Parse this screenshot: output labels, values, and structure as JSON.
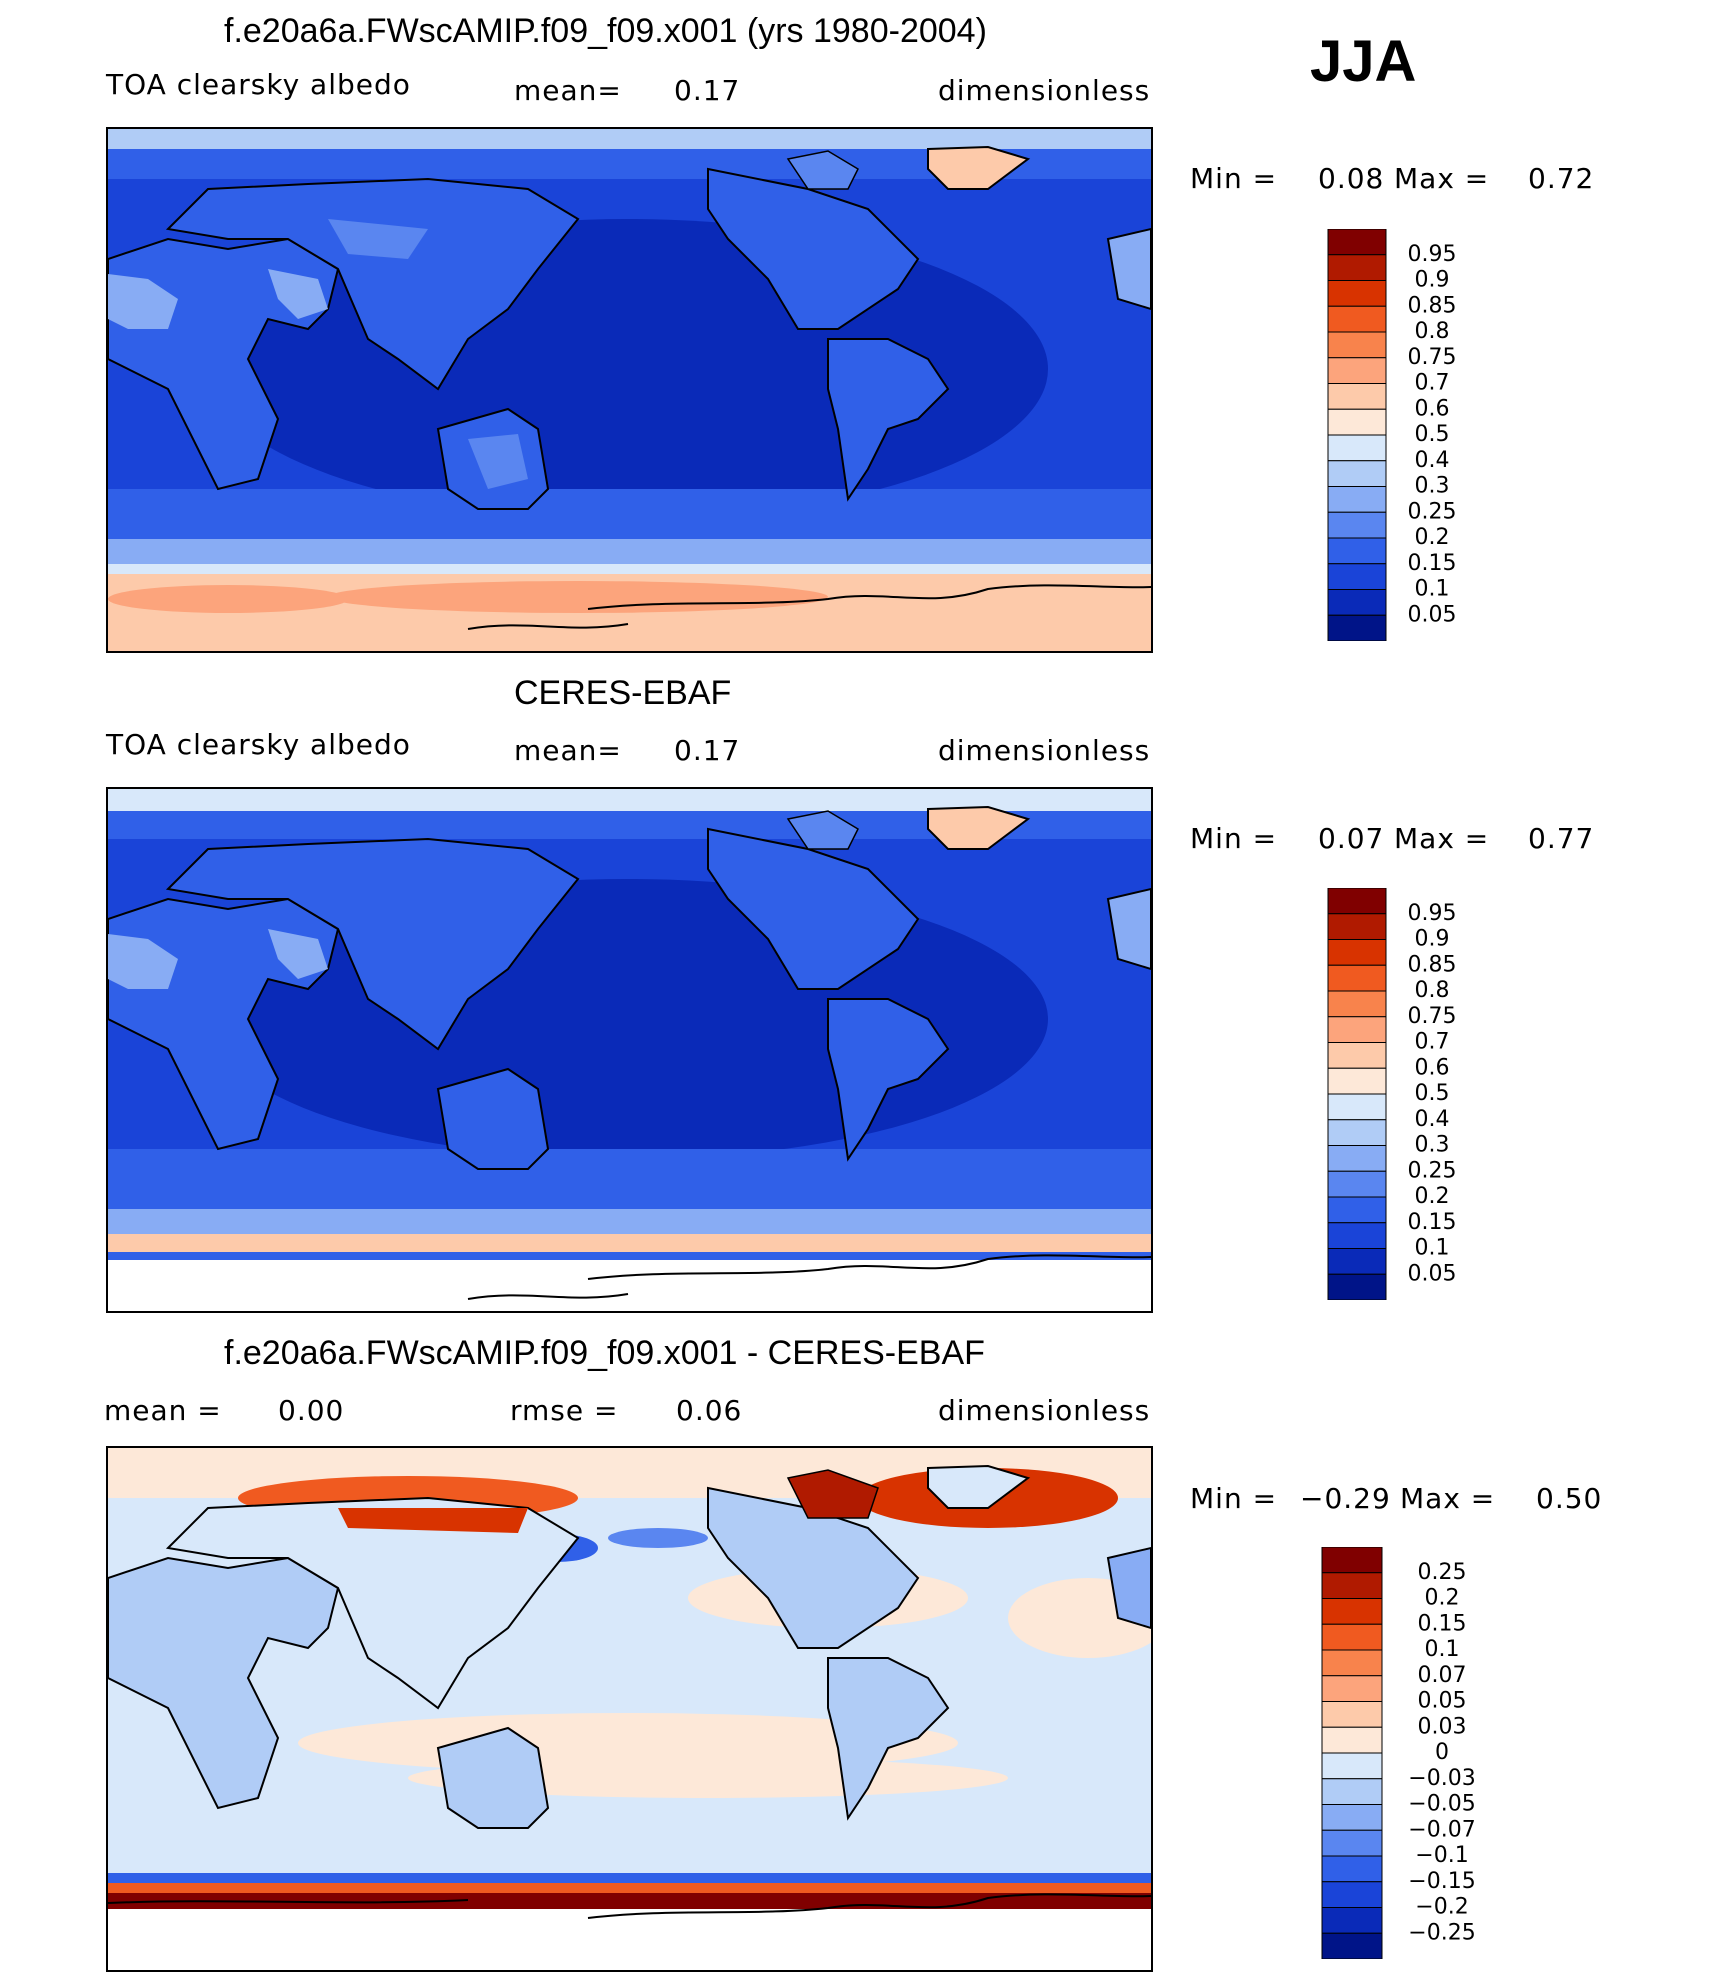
{
  "season": "JJA",
  "panels": [
    {
      "id": "model",
      "title": "f.e20a6a.FWscAMIP.f09_f09.x001 (yrs 1980-2004)",
      "left_label": "TOA clearsky albedo",
      "center_label": "mean=",
      "center_value": "0.17",
      "right_label": "dimensionless",
      "min_label": "Min  =",
      "min_value": "0.08",
      "max_label": "Max  =",
      "max_value": "0.72"
    },
    {
      "id": "obs",
      "title": "CERES-EBAF",
      "left_label": "TOA clearsky albedo",
      "center_label": "mean=",
      "center_value": "0.17",
      "right_label": "dimensionless",
      "min_label": "Min  =",
      "min_value": "0.07",
      "max_label": "Max  =",
      "max_value": "0.77"
    },
    {
      "id": "diff",
      "title": "f.e20a6a.FWscAMIP.f09_f09.x001 - CERES-EBAF",
      "left_label": "mean =",
      "left_value": "0.00",
      "center_label": "rmse =",
      "center_value": "0.06",
      "right_label": "dimensionless",
      "min_label": "Min  =",
      "min_value": "−0.29",
      "max_label": "Max  =",
      "max_value": "0.50"
    }
  ],
  "colorbars": {
    "albedo": {
      "levels": [
        "0.95",
        "0.9",
        "0.85",
        "0.8",
        "0.75",
        "0.7",
        "0.6",
        "0.5",
        "0.4",
        "0.3",
        "0.25",
        "0.2",
        "0.15",
        "0.1",
        "0.05"
      ],
      "colors": [
        "#800000",
        "#b01a00",
        "#d83300",
        "#f05a20",
        "#f8834c",
        "#fca47c",
        "#fdcaaa",
        "#fde8d8",
        "#d8e8fa",
        "#b0ccf6",
        "#88acf4",
        "#5a86f0",
        "#3060e8",
        "#1a44d8",
        "#0a2ab8",
        "#001488"
      ]
    },
    "difference": {
      "levels": [
        "0.25",
        "0.2",
        "0.15",
        "0.1",
        "0.07",
        "0.05",
        "0.03",
        "0",
        "−0.03",
        "−0.05",
        "−0.07",
        "−0.1",
        "−0.15",
        "−0.2",
        "−0.25"
      ],
      "colors": [
        "#800000",
        "#b01a00",
        "#d83300",
        "#f05a20",
        "#f8834c",
        "#fca47c",
        "#fdcaaa",
        "#fde8d8",
        "#d8e8fa",
        "#b0ccf6",
        "#88acf4",
        "#5a86f0",
        "#3060e8",
        "#1a44d8",
        "#0a2ab8",
        "#001488"
      ]
    }
  },
  "palette": {
    "ocean_deep": "#0a2ab8",
    "ocean_mid": "#1a44d8",
    "land": "#3060e8",
    "desert": "#88acf4",
    "ice": "#fdcaaa",
    "diff_neutral": "#d8e8fa",
    "diff_pos": "#fde8d8",
    "diff_strong_pos": "#d83300",
    "coast": "#000000"
  }
}
